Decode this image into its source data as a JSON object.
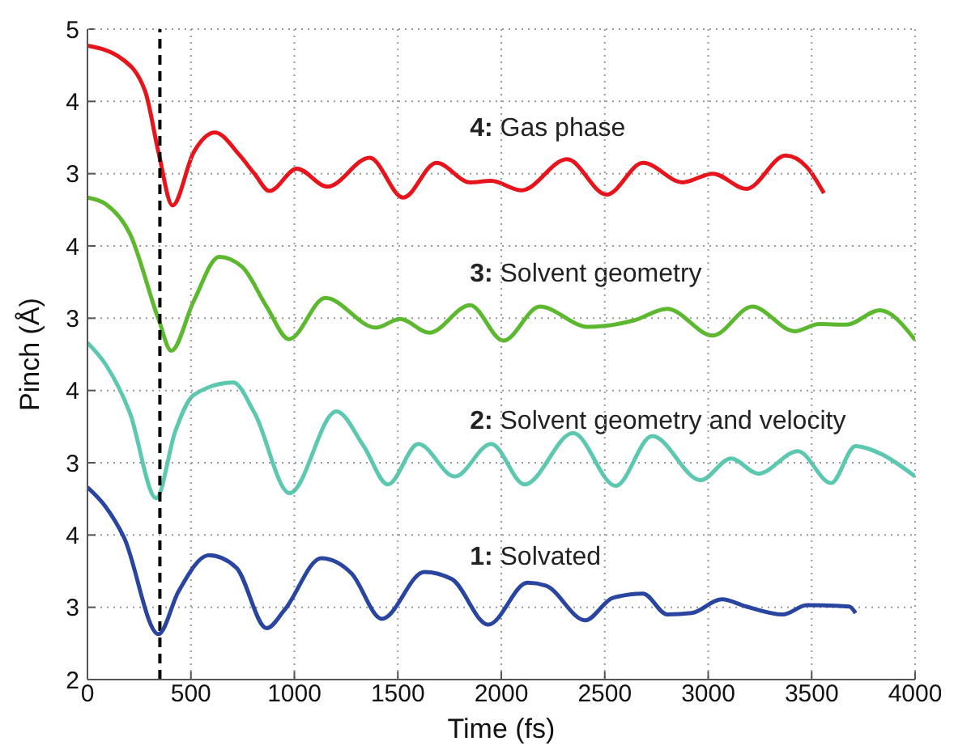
{
  "chart_data": [
    {
      "type": "line",
      "xlim": [
        0,
        4000
      ],
      "xticks": [
        0,
        500,
        1000,
        1500,
        2000,
        2500,
        3000,
        3500,
        4000
      ],
      "ylim": [
        -4,
        5
      ],
      "yticks": [
        3,
        4,
        5
      ],
      "grid": "y",
      "tick_labels": "y",
      "line_style": "solid",
      "marker": "none",
      "series": [
        {
          "name": "4: Gas phase",
          "color": "#e8141c",
          "x": [
            0,
            161,
            279,
            343,
            411,
            514,
            616,
            734,
            807,
            880,
            1012,
            1159,
            1364,
            1526,
            1687,
            1849,
            1951,
            2098,
            2318,
            2509,
            2685,
            2876,
            3022,
            3184,
            3374,
            3477,
            3559
          ],
          "values": [
            4.77,
            4.6,
            4.14,
            3.3,
            2.56,
            3.3,
            3.57,
            3.26,
            3.0,
            2.76,
            3.07,
            2.82,
            3.22,
            2.67,
            3.15,
            2.88,
            2.9,
            2.77,
            3.2,
            2.71,
            3.15,
            2.88,
            3.0,
            2.79,
            3.25,
            3.09,
            2.73
          ]
        }
      ]
    },
    {
      "type": "line",
      "xlim": [
        0,
        4000
      ],
      "xticks": [
        0,
        500,
        1000,
        1500,
        2000,
        2500,
        3000,
        3500,
        4000
      ],
      "ylim": [
        -2,
        7
      ],
      "yticks": [
        3,
        4
      ],
      "grid": "y",
      "tick_labels": "y",
      "line_style": "solid",
      "marker": "none",
      "series": [
        {
          "name": "3: Solvent geometry",
          "color": "#5cb82e",
          "x": [
            0,
            88,
            205,
            343,
            405,
            514,
            637,
            748,
            866,
            974,
            1150,
            1394,
            1511,
            1652,
            1849,
            2010,
            2186,
            2421,
            2641,
            2802,
            3022,
            3213,
            3418,
            3536,
            3668,
            3829,
            4000
          ],
          "values": [
            4.67,
            4.58,
            4.17,
            2.99,
            2.55,
            3.24,
            3.85,
            3.71,
            3.16,
            2.71,
            3.28,
            2.87,
            2.99,
            2.8,
            3.18,
            2.69,
            3.16,
            2.88,
            2.97,
            3.13,
            2.76,
            3.16,
            2.82,
            2.92,
            2.91,
            3.11,
            2.7
          ]
        }
      ]
    },
    {
      "type": "line",
      "xlim": [
        0,
        4000
      ],
      "xticks": [
        0,
        500,
        1000,
        1500,
        2000,
        2500,
        3000,
        3500,
        4000
      ],
      "ylim": [
        0,
        9
      ],
      "yticks": [
        3,
        4
      ],
      "grid": "y",
      "tick_labels": "y",
      "line_style": "solid",
      "marker": "none",
      "series": [
        {
          "name": "2: Solvent geometry and velocity",
          "color": "#5cc8b0",
          "x": [
            0,
            88,
            205,
            332,
            425,
            514,
            704,
            807,
            977,
            1203,
            1335,
            1452,
            1599,
            1775,
            1951,
            2113,
            2347,
            2553,
            2729,
            2964,
            3110,
            3242,
            3433,
            3594,
            3712,
            3829,
            4000
          ],
          "values": [
            4.66,
            4.36,
            3.69,
            2.51,
            3.44,
            3.94,
            4.11,
            3.69,
            2.58,
            3.71,
            3.23,
            2.7,
            3.26,
            2.81,
            3.26,
            2.7,
            3.41,
            2.68,
            3.37,
            2.76,
            3.06,
            2.85,
            3.16,
            2.72,
            3.23,
            3.13,
            2.81
          ]
        }
      ]
    },
    {
      "type": "line",
      "xlabel": "Time (fs)",
      "ylabel": "Pinch (Å)",
      "xlim": [
        0,
        4000
      ],
      "xticks": [
        0,
        500,
        1000,
        1500,
        2000,
        2500,
        3000,
        3500,
        4000
      ],
      "ylim": [
        2,
        11
      ],
      "yticks": [
        2,
        3,
        4
      ],
      "grid": true,
      "line_style": "solid",
      "marker": "none",
      "ref_lines": [
        {
          "axis": "x",
          "value": 350,
          "label": null,
          "color": "#000000",
          "line_style": "dashed"
        }
      ],
      "series": [
        {
          "name": "1: Solvated",
          "color": "#2a45a0",
          "x": [
            0,
            88,
            176,
            343,
            440,
            587,
            719,
            866,
            954,
            1130,
            1276,
            1423,
            1628,
            1761,
            1937,
            2127,
            2215,
            2406,
            2538,
            2685,
            2802,
            2920,
            3066,
            3184,
            3360,
            3477,
            3682,
            3712
          ],
          "values": [
            4.66,
            4.39,
            3.97,
            2.63,
            3.22,
            3.72,
            3.55,
            2.71,
            2.97,
            3.68,
            3.47,
            2.84,
            3.49,
            3.39,
            2.76,
            3.34,
            3.3,
            2.82,
            3.13,
            3.19,
            2.9,
            2.92,
            3.11,
            3.01,
            2.9,
            3.03,
            3.01,
            2.92
          ]
        }
      ]
    }
  ]
}
